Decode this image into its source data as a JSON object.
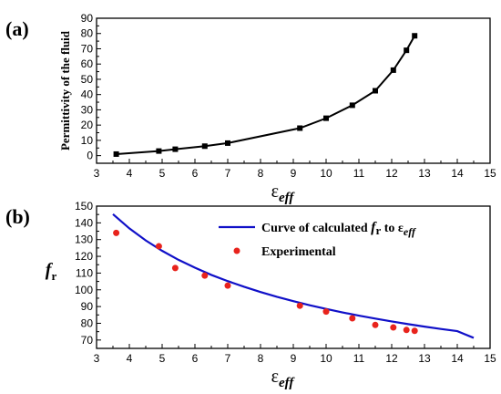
{
  "chart_data": [
    {
      "type": "line",
      "panel_label": "(a)",
      "ylabel": "Permittivity of the fluid",
      "xlabel": "ε",
      "xlabel_sub": "eff",
      "xlim": [
        3,
        15
      ],
      "ylim": [
        -5,
        90
      ],
      "x_ticks": [
        3,
        3.5,
        4,
        4.5,
        5,
        5.5,
        6,
        6.5,
        7,
        7.5,
        8,
        8.5,
        9,
        9.5,
        10,
        10.5,
        11,
        11.5,
        12,
        12.5,
        13,
        13.5,
        14,
        14.5,
        15
      ],
      "x_tick_labels": [
        "3",
        "4",
        "5",
        "6",
        "7",
        "8",
        "9",
        "10",
        "11",
        "12",
        "13",
        "14",
        "15"
      ],
      "x_tick_label_values": [
        3,
        4,
        5,
        6,
        7,
        8,
        9,
        10,
        11,
        12,
        13,
        14,
        15
      ],
      "y_tick_labels": [
        "0",
        "10",
        "20",
        "30",
        "40",
        "50",
        "60",
        "70",
        "80",
        "90"
      ],
      "y_tick_label_values": [
        0,
        10,
        20,
        30,
        40,
        50,
        60,
        70,
        80,
        90
      ],
      "series": [
        {
          "marker": "square",
          "color": "#000000",
          "x": [
            3.6,
            4.9,
            5.4,
            6.3,
            7.0,
            9.2,
            10.0,
            10.8,
            11.5,
            12.05,
            12.45,
            12.7
          ],
          "y": [
            1,
            3,
            4.2,
            6.2,
            8.2,
            18,
            24.5,
            33,
            42.5,
            56,
            69,
            78.5
          ]
        }
      ]
    },
    {
      "type": "line",
      "panel_label": "(b)",
      "ylabel": "f",
      "ylabel_sub": "r",
      "xlabel": "ε",
      "xlabel_sub": "eff",
      "xlim": [
        3,
        15
      ],
      "ylim": [
        65,
        150
      ],
      "x_ticks": [
        3,
        3.5,
        4,
        4.5,
        5,
        5.5,
        6,
        6.5,
        7,
        7.5,
        8,
        8.5,
        9,
        9.5,
        10,
        10.5,
        11,
        11.5,
        12,
        12.5,
        13,
        13.5,
        14,
        14.5,
        15
      ],
      "x_tick_labels": [
        "3",
        "4",
        "5",
        "6",
        "7",
        "8",
        "9",
        "10",
        "11",
        "12",
        "13",
        "14",
        "15"
      ],
      "x_tick_label_values": [
        3,
        4,
        5,
        6,
        7,
        8,
        9,
        10,
        11,
        12,
        13,
        14,
        15
      ],
      "y_tick_labels": [
        "70",
        "80",
        "90",
        "100",
        "110",
        "120",
        "130",
        "140",
        "150"
      ],
      "y_tick_label_values": [
        70,
        80,
        90,
        100,
        110,
        120,
        130,
        140,
        150
      ],
      "legend": {
        "curve_text": "Curve of calculated ",
        "curve_f": "f",
        "curve_r": "r",
        "curve_to": " to ε",
        "curve_eff": "eff",
        "exp_text": "Experimental"
      },
      "series": [
        {
          "kind": "curve",
          "color": "#1010c8",
          "x": [
            3.5,
            4,
            4.5,
            5,
            5.5,
            6,
            6.5,
            7,
            7.5,
            8,
            8.5,
            9,
            9.5,
            10,
            10.5,
            11,
            11.5,
            12,
            12.5,
            13,
            13.5,
            14,
            14.5
          ],
          "y": [
            145.2,
            136.7,
            129.5,
            123.3,
            117.9,
            113.2,
            108.9,
            105.2,
            101.8,
            98.7,
            95.8,
            93.2,
            90.8,
            88.6,
            86.5,
            84.6,
            82.8,
            81.1,
            79.5,
            78.0,
            76.6,
            75.3,
            71.3
          ]
        },
        {
          "kind": "scatter",
          "color": "#e8231c",
          "x": [
            3.6,
            4.9,
            5.4,
            6.3,
            7.0,
            9.2,
            10.0,
            10.8,
            11.5,
            12.05,
            12.45,
            12.7
          ],
          "y": [
            134,
            126,
            113,
            108.5,
            102.5,
            90.5,
            87,
            83,
            79,
            77.5,
            76,
            75.5
          ]
        }
      ]
    }
  ]
}
